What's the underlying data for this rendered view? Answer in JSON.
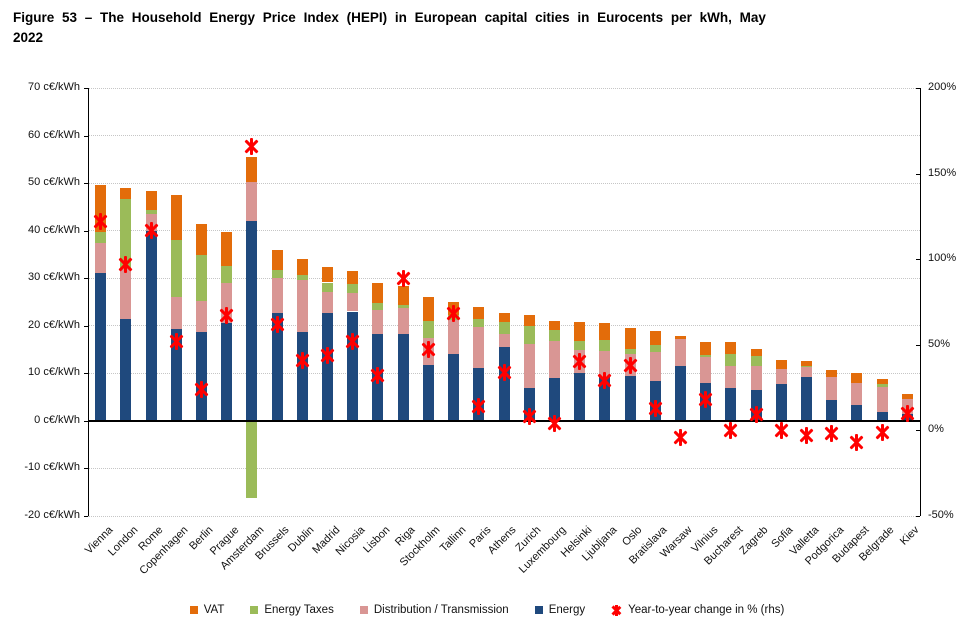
{
  "figure": {
    "title_line1": "Figure 53 – The Household Energy Price Index (HEPI) in European capital cities in Eurocents per kWh, May",
    "title_line2": "2022"
  },
  "chart_data": {
    "type": "bar",
    "subtype": "stacked-columns-with-scatter-markers",
    "title": "Figure 53 – The Household Energy Price Index (HEPI) in European capital cities in Eurocents per kWh, May 2022",
    "grid": true,
    "legend_position": "bottom",
    "categories": [
      "Vienna",
      "London",
      "Rome",
      "Copenhagen",
      "Berlin",
      "Prague",
      "Amsterdam",
      "Brussels",
      "Dublin",
      "Madrid",
      "Nicosia",
      "Lisbon",
      "Riga",
      "Stockholm",
      "Tallinn",
      "Paris",
      "Athens",
      "Zurich",
      "Luxembourg",
      "Helsinki",
      "Ljubljana",
      "Oslo",
      "Bratislava",
      "Warsaw",
      "Vilnius",
      "Bucharest",
      "Zagreb",
      "Sofia",
      "Valletta",
      "Podgorica",
      "Budapest",
      "Belgrade",
      "Kiev"
    ],
    "series": [
      {
        "name": "Energy",
        "color": "#1F497D",
        "unit": "c€/kWh",
        "values": [
          31.0,
          21.5,
          40.0,
          19.4,
          18.6,
          20.6,
          42.0,
          22.6,
          18.6,
          22.7,
          23.0,
          18.3,
          18.3,
          11.8,
          14.1,
          11.2,
          15.6,
          7.0,
          9.1,
          10.0,
          9.3,
          9.5,
          8.4,
          11.6,
          8.0,
          6.9,
          6.5,
          7.8,
          9.3,
          4.3,
          3.3,
          1.9,
          1.5
        ]
      },
      {
        "name": "Distribution / Transmission",
        "color": "#D99694",
        "unit": "c€/kWh",
        "values": [
          6.5,
          10.6,
          3.5,
          6.6,
          6.7,
          8.3,
          8.3,
          7.5,
          11.0,
          4.3,
          3.9,
          5.1,
          5.4,
          5.6,
          7.2,
          8.5,
          2.7,
          9.1,
          7.7,
          4.9,
          5.3,
          4.5,
          6.1,
          5.7,
          5.4,
          4.7,
          5.1,
          3.1,
          2.0,
          4.9,
          4.6,
          5.3,
          3.2
        ]
      },
      {
        "name": "Energy Taxes",
        "color": "#9BBB59",
        "unit": "c€/kWh",
        "values": [
          2.3,
          14.6,
          0.8,
          12.0,
          9.5,
          3.7,
          -16.2,
          1.6,
          1.1,
          2.1,
          1.9,
          1.4,
          0.6,
          3.7,
          1.0,
          1.8,
          2.5,
          3.8,
          2.4,
          2.0,
          2.4,
          1.1,
          1.4,
          0.0,
          0.4,
          2.5,
          2.1,
          0.0,
          0.2,
          0.0,
          0.0,
          0.6,
          0.0
        ]
      },
      {
        "name": "VAT",
        "color": "#E36C0A",
        "unit": "c€/kWh",
        "values": [
          9.7,
          2.2,
          4.0,
          9.5,
          6.6,
          7.2,
          5.2,
          4.2,
          3.3,
          3.2,
          2.7,
          4.1,
          4.1,
          5.0,
          2.6,
          2.5,
          1.8,
          2.3,
          1.9,
          3.9,
          3.5,
          4.4,
          3.0,
          0.6,
          2.7,
          2.4,
          1.4,
          1.8,
          1.0,
          1.6,
          2.1,
          1.0,
          0.9
        ]
      }
    ],
    "marker_series": {
      "name": "Year-to-year change in % (rhs)",
      "color": "#FF0000",
      "unit": "%",
      "axis": "right",
      "values": [
        122,
        97,
        117,
        52,
        24,
        67,
        166,
        62,
        41,
        44,
        52,
        32,
        89,
        47,
        68,
        14,
        34,
        8,
        4,
        40,
        29,
        38,
        13,
        -4,
        18,
        0,
        9,
        0,
        -3,
        -2,
        -7,
        -1,
        10
      ]
    },
    "left_axis": {
      "min": -20,
      "max": 70,
      "step": 10,
      "tick_labels": [
        "70 c€/kWh",
        "60 c€/kWh",
        "50 c€/kWh",
        "40 c€/kWh",
        "30 c€/kWh",
        "20 c€/kWh",
        "10 c€/kWh",
        "0 c€/kWh",
        "-10 c€/kWh",
        "-20 c€/kWh"
      ]
    },
    "right_axis": {
      "min": -50,
      "max": 200,
      "step": 50,
      "tick_labels": [
        "200%",
        "150%",
        "100%",
        "50%",
        "0%",
        "-50%"
      ]
    },
    "legend": [
      {
        "label": "VAT",
        "color": "#E36C0A",
        "glyph": "square"
      },
      {
        "label": "Energy Taxes",
        "color": "#9BBB59",
        "glyph": "square"
      },
      {
        "label": "Distribution / Transmission",
        "color": "#D99694",
        "glyph": "square"
      },
      {
        "label": "Energy",
        "color": "#1F497D",
        "glyph": "square"
      },
      {
        "label": "Year-to-year change in % (rhs)",
        "color": "#FF0000",
        "glyph": "x-marker"
      }
    ]
  }
}
